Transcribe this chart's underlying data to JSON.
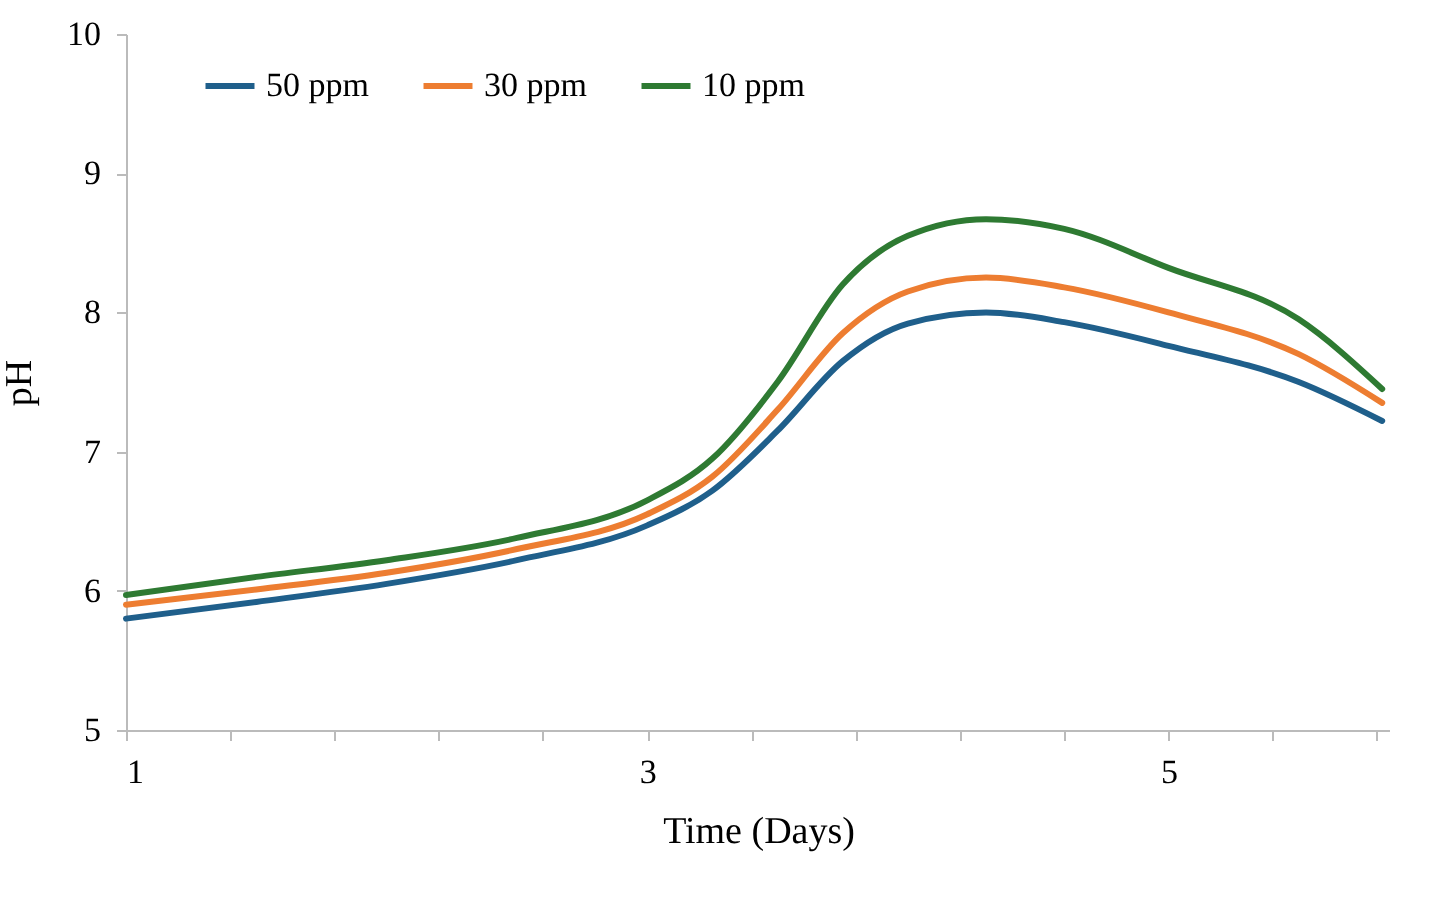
{
  "chart_data": {
    "type": "line",
    "xlabel": "Time (Days)",
    "ylabel": "pH",
    "x": [
      1,
      1.5,
      2,
      2.5,
      3,
      3.25,
      3.5,
      3.75,
      4,
      4.3,
      4.6,
      5,
      5.5,
      5.82
    ],
    "series": [
      {
        "name": "50 ppm",
        "color": "#1f5f8b",
        "values": [
          5.8,
          5.92,
          6.05,
          6.22,
          6.47,
          6.72,
          7.15,
          7.65,
          7.92,
          8.0,
          7.93,
          7.76,
          7.5,
          7.22
        ]
      },
      {
        "name": "30 ppm",
        "color": "#ed7d31",
        "values": [
          5.9,
          6.01,
          6.13,
          6.3,
          6.55,
          6.82,
          7.3,
          7.85,
          8.15,
          8.25,
          8.18,
          8.0,
          7.7,
          7.35
        ]
      },
      {
        "name": "10 ppm",
        "color": "#2e7a32",
        "values": [
          5.97,
          6.1,
          6.22,
          6.38,
          6.65,
          6.95,
          7.5,
          8.2,
          8.55,
          8.67,
          8.6,
          8.32,
          7.95,
          7.45
        ]
      }
    ],
    "xlim": [
      1,
      5.85
    ],
    "xticks": [
      1,
      {
        "value": 1.4,
        "label": null
      },
      {
        "value": 1.8,
        "label": null
      },
      {
        "value": 2.2,
        "label": null
      },
      {
        "value": 2.6,
        "label": null
      },
      3,
      {
        "value": 3.4,
        "label": null
      },
      {
        "value": 3.8,
        "label": null
      },
      {
        "value": 4.2,
        "label": null
      },
      {
        "value": 4.6,
        "label": null
      },
      5,
      {
        "value": 5.4,
        "label": null
      },
      {
        "value": 5.8,
        "label": null
      }
    ],
    "ylim": [
      5,
      10
    ],
    "yticks": [
      5,
      6,
      7,
      8,
      9,
      10
    ],
    "grid": false,
    "legend": "top",
    "marker": "none",
    "line_style": "solid"
  }
}
